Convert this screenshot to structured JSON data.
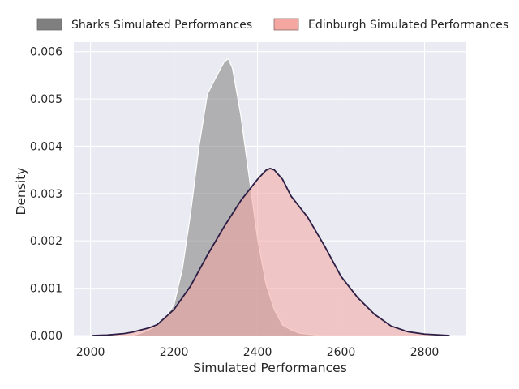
{
  "colors": {
    "plot_background": "#eaeaf2",
    "grid": "#ffffff",
    "sharks_fill": "#7f7f7f",
    "sharks_line": "#ffffff",
    "edinburgh_fill": "#f4a6a0",
    "edinburgh_line": "#2c1e44"
  },
  "chart_data": {
    "type": "area",
    "xlabel": "Simulated Performances",
    "ylabel": "Density",
    "xlim": [
      1960,
      2900
    ],
    "ylim": [
      0,
      0.0062
    ],
    "xticks": [
      2000,
      2200,
      2400,
      2600,
      2800
    ],
    "xtick_labels": [
      "2000",
      "2200",
      "2400",
      "2600",
      "2800"
    ],
    "yticks": [
      0,
      0.001,
      0.002,
      0.003,
      0.004,
      0.005,
      0.006
    ],
    "ytick_labels": [
      "0.000",
      "0.001",
      "0.002",
      "0.003",
      "0.004",
      "0.005",
      "0.006"
    ],
    "grid": true,
    "legend_position": "top, above plot",
    "series": [
      {
        "name": "Sharks Simulated Performances",
        "points": [
          [
            2100,
            0.0
          ],
          [
            2120,
            5e-05
          ],
          [
            2140,
            0.00012
          ],
          [
            2160,
            0.00022
          ],
          [
            2180,
            0.0004
          ],
          [
            2200,
            0.00065
          ],
          [
            2220,
            0.0014
          ],
          [
            2240,
            0.0026
          ],
          [
            2260,
            0.004
          ],
          [
            2280,
            0.0051
          ],
          [
            2300,
            0.00545
          ],
          [
            2320,
            0.00578
          ],
          [
            2330,
            0.00585
          ],
          [
            2340,
            0.00565
          ],
          [
            2360,
            0.00465
          ],
          [
            2380,
            0.00335
          ],
          [
            2400,
            0.00205
          ],
          [
            2420,
            0.0011
          ],
          [
            2440,
            0.00055
          ],
          [
            2460,
            0.00022
          ],
          [
            2480,
            0.00012
          ],
          [
            2500,
            5e-05
          ],
          [
            2540,
            1e-05
          ],
          [
            2560,
            0.0
          ]
        ]
      },
      {
        "name": "Edinburgh Simulated Performances",
        "points": [
          [
            2005,
            0.0
          ],
          [
            2040,
            1e-05
          ],
          [
            2080,
            4e-05
          ],
          [
            2100,
            7e-05
          ],
          [
            2140,
            0.00016
          ],
          [
            2160,
            0.00023
          ],
          [
            2200,
            0.00055
          ],
          [
            2240,
            0.00105
          ],
          [
            2280,
            0.0017
          ],
          [
            2320,
            0.0023
          ],
          [
            2360,
            0.00285
          ],
          [
            2400,
            0.0033
          ],
          [
            2420,
            0.00349
          ],
          [
            2430,
            0.00353
          ],
          [
            2440,
            0.0035
          ],
          [
            2460,
            0.0033
          ],
          [
            2480,
            0.00295
          ],
          [
            2520,
            0.0025
          ],
          [
            2560,
            0.0019
          ],
          [
            2600,
            0.00125
          ],
          [
            2640,
            0.0008
          ],
          [
            2680,
            0.00045
          ],
          [
            2720,
            0.0002
          ],
          [
            2760,
            8e-05
          ],
          [
            2800,
            3e-05
          ],
          [
            2860,
            0.0
          ]
        ]
      }
    ]
  }
}
